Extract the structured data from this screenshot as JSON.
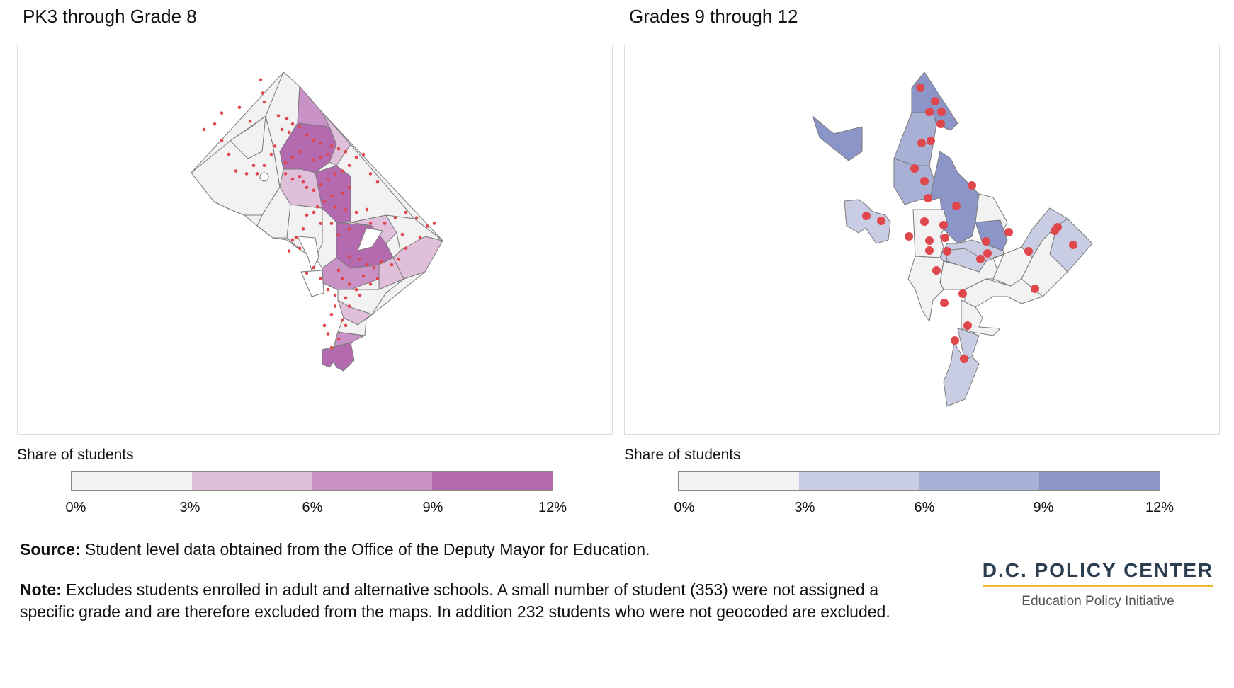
{
  "panels": {
    "left": {
      "title": "PK3 through Grade 8",
      "legend_title": "Share of students",
      "colors": [
        "#f2f2f2",
        "#dfbfda",
        "#c892c6",
        "#b46aaf"
      ],
      "dot_color": "#e0474c",
      "ticks": [
        "0%",
        "3%",
        "6%",
        "9%",
        "12%"
      ]
    },
    "right": {
      "title": "Grades 9 through 12",
      "legend_title": "Share of students",
      "colors": [
        "#f2f2f2",
        "#c9cde3",
        "#a8b0d6",
        "#8b95c8"
      ],
      "dot_color": "#e0474c",
      "ticks": [
        "0%",
        "3%",
        "6%",
        "9%",
        "12%"
      ]
    }
  },
  "source": {
    "label": "Source:",
    "text": " Student level data obtained from the Office of the Deputy Mayor for Education."
  },
  "note": {
    "label": "Note:",
    "text": " Excludes students enrolled in adult and alternative schools. A small number of student (353) were not assigned a specific grade and are therefore excluded from the maps. In addition 232 students who were not geocoded are excluded."
  },
  "logo": {
    "name": "D.C. POLICY CENTER",
    "subtitle": "Education Policy Initiative"
  }
}
